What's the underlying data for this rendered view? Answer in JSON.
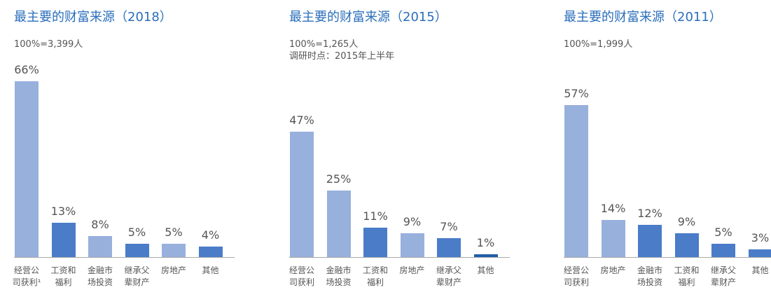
{
  "chart_data": [
    {
      "type": "bar",
      "title": "最主要的财富来源（2018）",
      "notes": [
        "100%=3,399人"
      ],
      "categories": [
        "经营公司获利¹",
        "工资和福利",
        "金融市场投资",
        "继承父辈财产",
        "房地产",
        "其他"
      ],
      "values": [
        66,
        13,
        8,
        5,
        5,
        4
      ],
      "value_labels": [
        "66%",
        "13%",
        "8%",
        "5%",
        "5%",
        "4%"
      ],
      "colors": [
        "#98b0dc",
        "#4a7cc8",
        "#98b0dc",
        "#4a7cc8",
        "#98b0dc",
        "#4a7cc8"
      ]
    },
    {
      "type": "bar",
      "title": "最主要的财富来源（2015）",
      "notes": [
        "100%=1,265人",
        "调研时点：2015年上半年"
      ],
      "categories": [
        "经营公司获利",
        "金融市场投资",
        "工资和福利",
        "房地产",
        "继承父辈财产",
        "其他"
      ],
      "values": [
        47,
        25,
        11,
        9,
        7,
        1
      ],
      "value_labels": [
        "47%",
        "25%",
        "11%",
        "9%",
        "7%",
        "1%"
      ],
      "colors": [
        "#98b0dc",
        "#98b0dc",
        "#4a7cc8",
        "#98b0dc",
        "#4a7cc8",
        "#1f5fa8"
      ]
    },
    {
      "type": "bar",
      "title": "最主要的财富来源（2011）",
      "notes": [
        "100%=1,999人"
      ],
      "categories": [
        "经营公司获利",
        "房地产",
        "金融市场投资",
        "工资和福利",
        "继承父辈财产",
        "其他"
      ],
      "values": [
        57,
        14,
        12,
        9,
        5,
        3
      ],
      "value_labels": [
        "57%",
        "14%",
        "12%",
        "9%",
        "5%",
        "3%"
      ],
      "colors": [
        "#98b0dc",
        "#98b0dc",
        "#4a7cc8",
        "#4a7cc8",
        "#4a7cc8",
        "#4a7cc8"
      ]
    }
  ]
}
